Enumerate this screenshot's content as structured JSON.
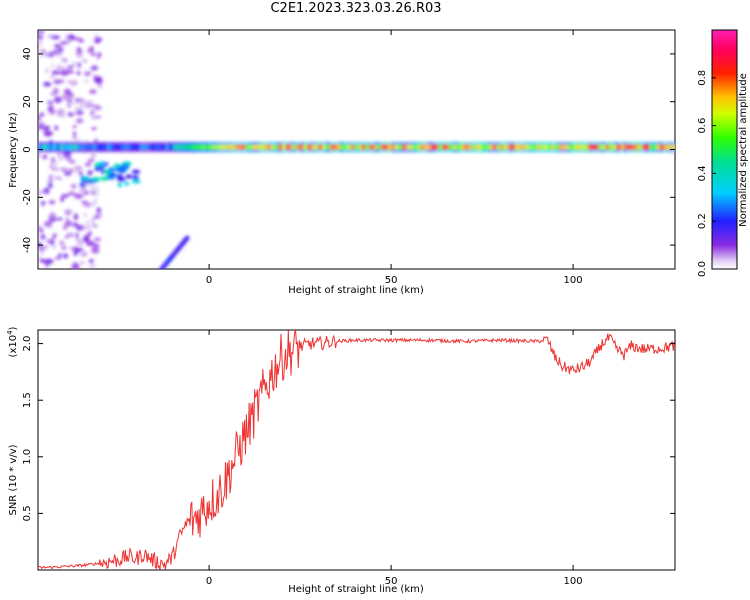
{
  "title": "C2E1.2023.323.03.26.R03",
  "chart_data": [
    {
      "type": "heatmap",
      "xlabel": "Height of straight line (km)",
      "ylabel": "Frequency (Hz)",
      "xlim": [
        -47,
        128
      ],
      "ylim": [
        -50,
        50
      ],
      "xticks": [
        0,
        50,
        100
      ],
      "yticks": [
        -40,
        -20,
        0,
        20,
        40
      ],
      "colorbar": {
        "label": "Normalized spectral amplitude",
        "range": [
          0,
          1
        ],
        "ticks": [
          "0.0",
          "0.2",
          "0.4",
          "0.6",
          "0.8"
        ],
        "colormap": "rainbow (purple-blue-cyan-green-yellow-red-magenta)"
      },
      "features": [
        {
          "name": "zero-frequency line",
          "x_start": -47,
          "x_end": 128,
          "frequency": 1,
          "peak_amplitude": 0.9
        },
        {
          "name": "band near -10 Hz",
          "x_start": -35,
          "x_end": -20,
          "frequency": -10,
          "peak_amplitude": 0.3
        },
        {
          "name": "scattered noise",
          "x_start": -47,
          "x_end": -30,
          "frequency_range": [
            -50,
            50
          ],
          "peak_amplitude": 0.1
        },
        {
          "name": "diagonal streak",
          "x_start": -13,
          "x_end": -6,
          "frequency_range": [
            -50,
            -37
          ],
          "peak_amplitude": 0.15
        }
      ]
    },
    {
      "type": "line",
      "xlabel": "Height of straight line (km)",
      "ylabel": "SNR (10 * v/v)",
      "y_multiplier": "(x10",
      "y_multiplier_exp": "4",
      "xlim": [
        -47,
        128
      ],
      "ylim": [
        0,
        2.12
      ],
      "xticks": [
        0,
        50,
        100
      ],
      "yticks": [
        "0.5",
        "1.0",
        "1.5",
        "2.0"
      ],
      "series": [
        {
          "color": "#ee3333",
          "x": [
            -47,
            -40,
            -35,
            -30,
            -25,
            -22,
            -20,
            -18,
            -15,
            -12,
            -10,
            -8,
            -6,
            -4,
            -2,
            0,
            2,
            4,
            6,
            8,
            10,
            12,
            14,
            16,
            18,
            20,
            22,
            24,
            26,
            28,
            30,
            35,
            40,
            45,
            50,
            60,
            70,
            80,
            90,
            93,
            95,
            97,
            100,
            103,
            105,
            108,
            110,
            112,
            114,
            116,
            118,
            120,
            124,
            128
          ],
          "y": [
            0.02,
            0.03,
            0.04,
            0.06,
            0.09,
            0.12,
            0.1,
            0.14,
            0.08,
            0.05,
            0.12,
            0.3,
            0.42,
            0.45,
            0.52,
            0.6,
            0.65,
            0.75,
            0.9,
            1.05,
            1.2,
            1.35,
            1.5,
            1.65,
            1.78,
            1.88,
            1.93,
            1.96,
            1.98,
            2.0,
            2.0,
            2.02,
            2.03,
            2.03,
            2.03,
            2.03,
            2.02,
            2.03,
            2.02,
            2.03,
            1.88,
            1.8,
            1.76,
            1.8,
            1.85,
            2.0,
            2.05,
            1.95,
            1.9,
            1.98,
            1.96,
            1.95,
            1.96,
            1.98
          ]
        }
      ]
    }
  ]
}
